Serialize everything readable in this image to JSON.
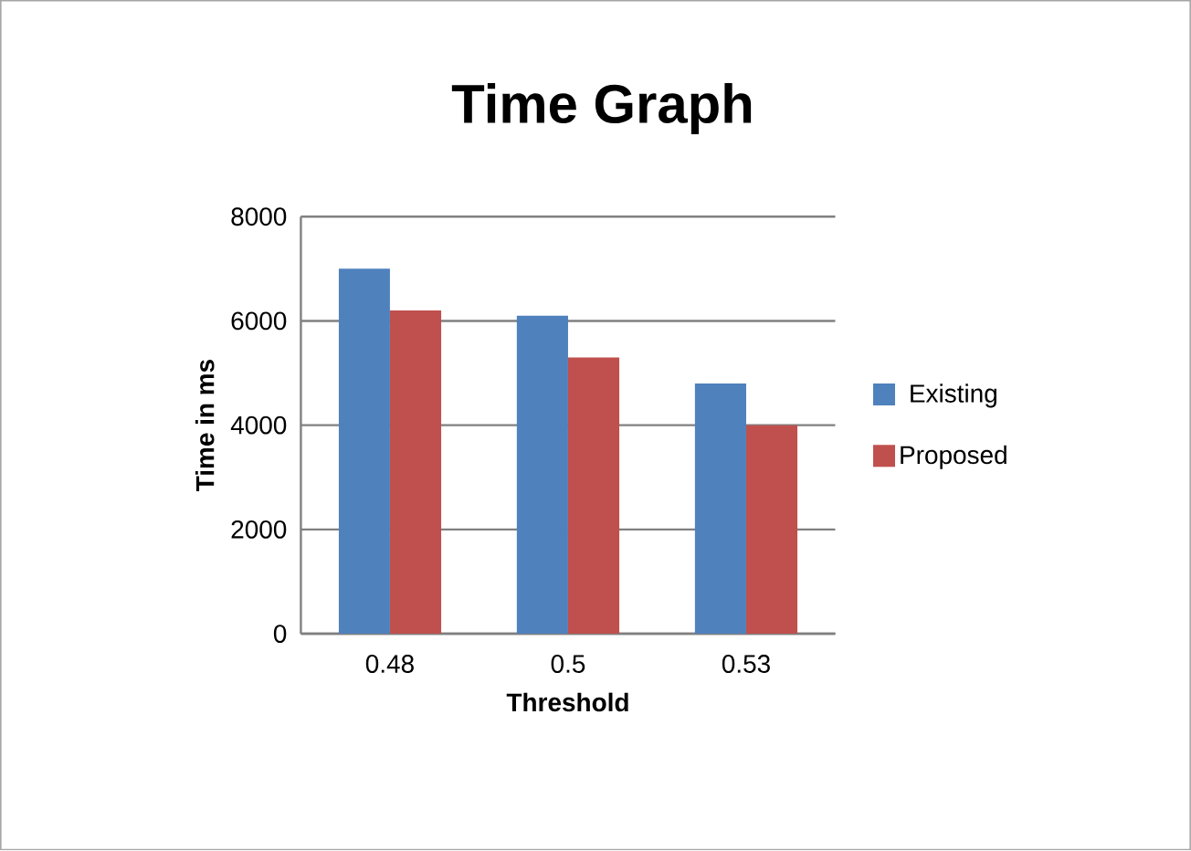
{
  "chart_data": {
    "type": "bar",
    "title": "Time Graph",
    "xlabel": "Threshold",
    "ylabel": "Time in ms",
    "categories": [
      "0.48",
      "0.5",
      "0.53"
    ],
    "series": [
      {
        "name": "Existing",
        "color": "#4f81bd",
        "values": [
          7000,
          6100,
          4800
        ]
      },
      {
        "name": "Proposed",
        "color": "#c0504d",
        "values": [
          6200,
          5300,
          4000
        ]
      }
    ],
    "ylim": [
      0,
      8000
    ],
    "yticks": [
      0,
      2000,
      4000,
      6000,
      8000
    ],
    "grid": "y",
    "legend": "right"
  }
}
